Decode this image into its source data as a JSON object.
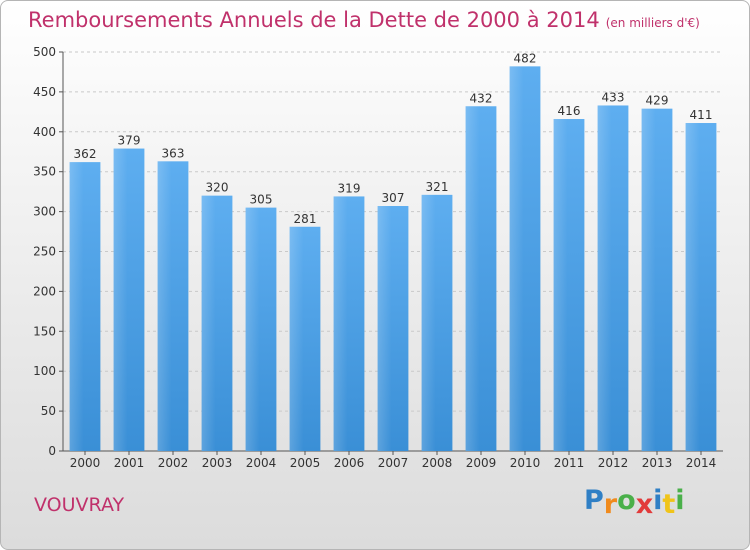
{
  "chart_data": {
    "type": "bar",
    "title": "Remboursements Annuels de la Dette de 2000 à 2014",
    "subtitle": "(en milliers d'€)",
    "categories": [
      "2000",
      "2001",
      "2002",
      "2003",
      "2004",
      "2005",
      "2006",
      "2007",
      "2008",
      "2009",
      "2010",
      "2011",
      "2012",
      "2013",
      "2014"
    ],
    "values": [
      362,
      379,
      363,
      320,
      305,
      281,
      319,
      307,
      321,
      432,
      482,
      416,
      433,
      429,
      411
    ],
    "ylim": [
      0,
      500
    ],
    "yticks": [
      0,
      50,
      100,
      150,
      200,
      250,
      300,
      350,
      400,
      450,
      500
    ],
    "grid": true,
    "bar_color": "#3a8fd6",
    "title_color": "#c0316b"
  },
  "footer": {
    "city": "VOUVRAY",
    "logo_letters": [
      {
        "ch": "P",
        "color": "#2f7fc5"
      },
      {
        "ch": "r",
        "color": "#f08a1c"
      },
      {
        "ch": "o",
        "color": "#4ab04a"
      },
      {
        "ch": "x",
        "color": "#e23a3a"
      },
      {
        "ch": "i",
        "color": "#2f7fc5"
      },
      {
        "ch": "t",
        "color": "#f0c419"
      },
      {
        "ch": "i",
        "color": "#4ab04a"
      }
    ]
  }
}
